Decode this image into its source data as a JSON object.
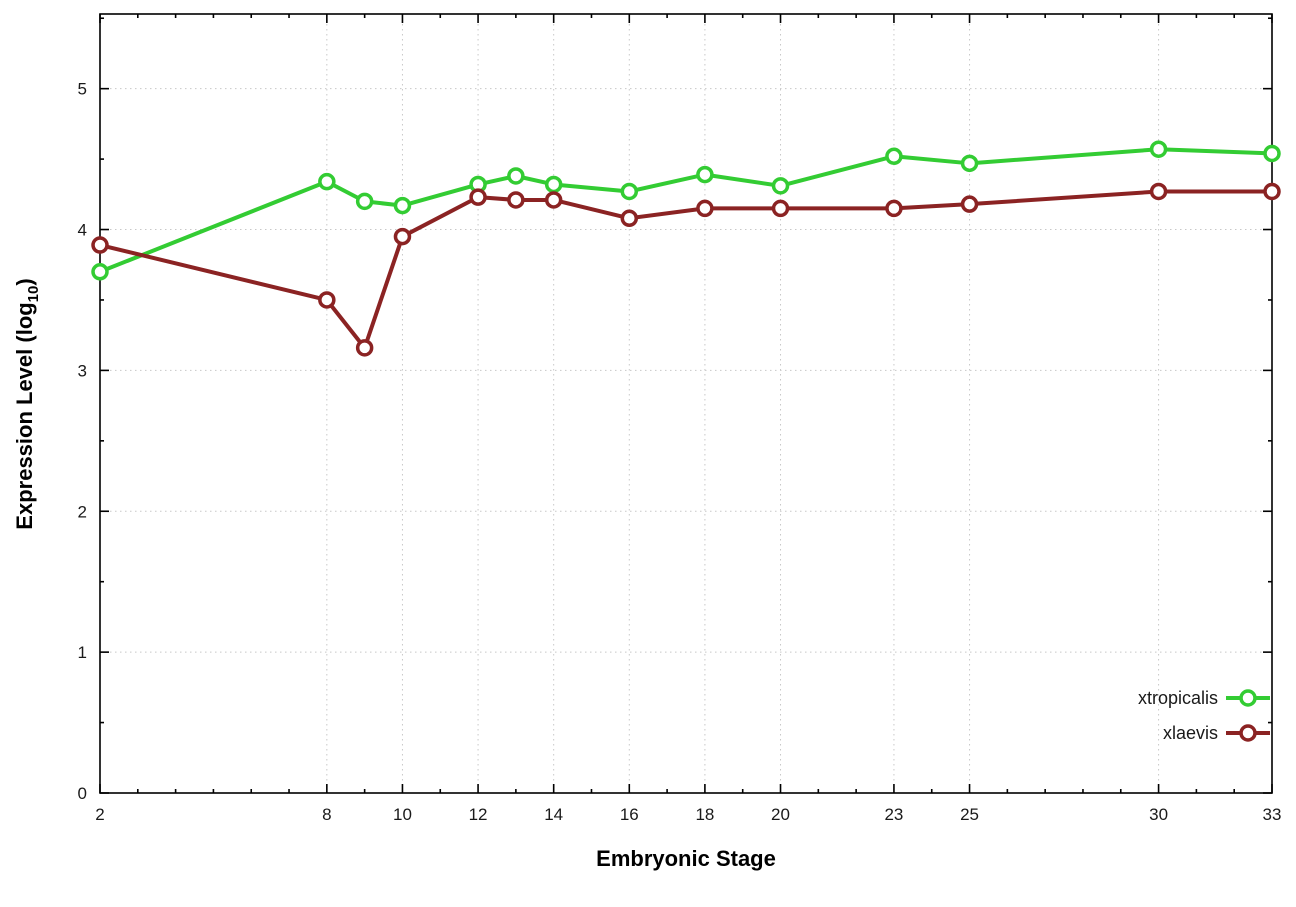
{
  "chart_data": {
    "type": "line",
    "title": "",
    "xlabel": "Embryonic Stage",
    "ylabel": "Expression Level (log10)",
    "ylabel_parts": {
      "pre": "Expression Level (log",
      "sub": "10",
      "post": ")"
    },
    "xlim": [
      2,
      33
    ],
    "ylim": [
      0,
      5.53
    ],
    "x_ticks": [
      2,
      8,
      10,
      12,
      14,
      16,
      18,
      20,
      23,
      25,
      30,
      33
    ],
    "y_ticks": [
      0,
      1,
      2,
      3,
      4,
      5
    ],
    "grid": true,
    "legend_position": "bottom-right",
    "background": "#ffffff",
    "x": [
      2,
      8,
      9,
      10,
      12,
      13,
      14,
      16,
      18,
      20,
      23,
      25,
      30,
      33
    ],
    "series": [
      {
        "name": "xtropicalis",
        "color": "#33cc33",
        "values": [
          3.7,
          4.34,
          4.2,
          4.17,
          4.32,
          4.38,
          4.32,
          4.27,
          4.39,
          4.31,
          4.52,
          4.47,
          4.57,
          4.54
        ]
      },
      {
        "name": "xlaevis",
        "color": "#8b2323",
        "values": [
          3.89,
          3.5,
          3.16,
          3.95,
          4.23,
          4.21,
          4.21,
          4.08,
          4.15,
          4.15,
          4.15,
          4.18,
          4.27,
          4.27
        ]
      }
    ]
  }
}
